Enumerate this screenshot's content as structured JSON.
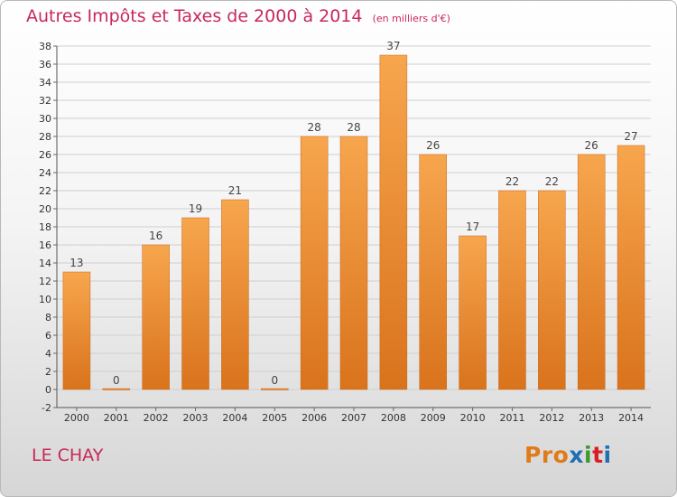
{
  "page": {
    "title": "Autres Impôts et Taxes de 2000 à 2014",
    "subtitle": "(en milliers d'€)",
    "commune": "LE CHAY",
    "logo_text": "Proxiti"
  },
  "colors": {
    "title": "#c8285a",
    "bar_light": "#f7a64e",
    "bar_dark": "#d9731c",
    "grid": "#cfcfcf",
    "logo": [
      "#e07b1a",
      "#e07b1a",
      "#e07b1a",
      "#1f6fb5",
      "#3b9a2f",
      "#d81f26",
      "#1f6fb5"
    ]
  },
  "chart_data": {
    "type": "bar",
    "title": "Autres Impôts et Taxes de 2000 à 2014",
    "subtitle": "(en milliers d'€)",
    "categories": [
      "2000",
      "2001",
      "2002",
      "2003",
      "2004",
      "2005",
      "2006",
      "2007",
      "2008",
      "2009",
      "2010",
      "2011",
      "2012",
      "2013",
      "2014"
    ],
    "values": [
      13,
      0,
      16,
      19,
      21,
      0,
      28,
      28,
      37,
      26,
      17,
      22,
      22,
      26,
      27
    ],
    "ylim": [
      -2,
      38
    ],
    "yticks": [
      -2,
      0,
      2,
      4,
      6,
      8,
      10,
      12,
      14,
      16,
      18,
      20,
      22,
      24,
      26,
      28,
      30,
      32,
      34,
      36,
      38
    ],
    "grid": true,
    "data_labels": true
  }
}
